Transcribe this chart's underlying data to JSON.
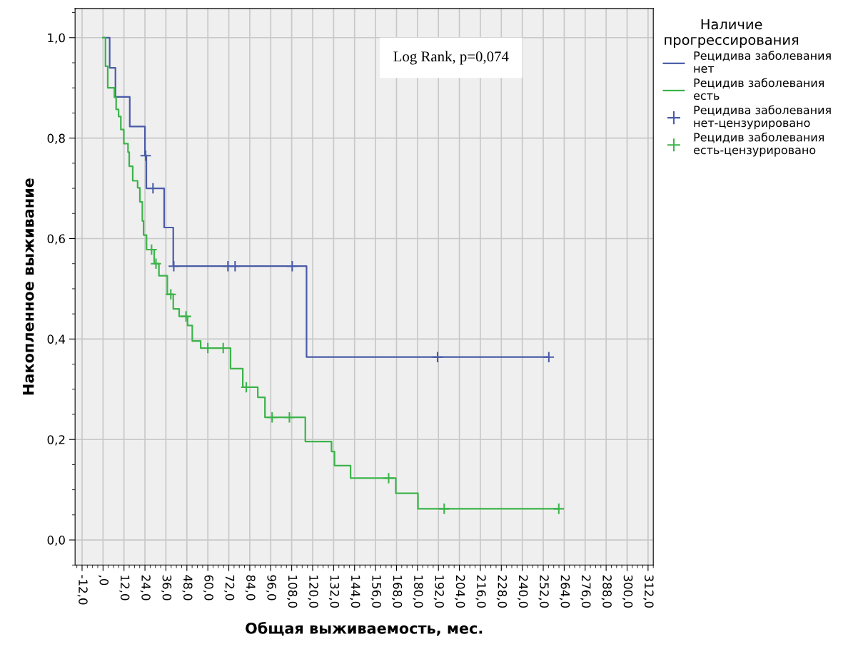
{
  "chart_data": {
    "type": "step",
    "xlabel": "Общая выживаемость, мес.",
    "ylabel": "Накопленное выживание",
    "legend_title": "Наличие прогрессирования",
    "annotations": [
      "Log Rank, p=0,074"
    ],
    "series": [
      {
        "name": "Рецидива заболевания нет",
        "color": "#4a5ca8",
        "x": [
          0,
          3.8,
          7.1,
          15.3,
          24.0,
          24.8,
          35.0,
          40.2,
          116.5,
          255.2
        ],
        "values": [
          1.0,
          0.94,
          0.882,
          0.823,
          0.765,
          0.7,
          0.622,
          0.545,
          0.364,
          0.364
        ]
      },
      {
        "name": "Рецидив заболевания есть",
        "color": "#3cb44a",
        "x": [
          0,
          1.4,
          2.7,
          6.5,
          7.5,
          8.9,
          10.2,
          11.9,
          14.3,
          15.0,
          17.0,
          19.8,
          21.1,
          22.5,
          23.2,
          24.9,
          29.3,
          32.0,
          36.8,
          40.2,
          43.6,
          48.4,
          51.1,
          55.9,
          73.0,
          80.0,
          88.6,
          92.7,
          115.8,
          130.8,
          132.5,
          141.7,
          167.6,
          180.3,
          260.9
        ],
        "values": [
          1.0,
          0.943,
          0.9,
          0.881,
          0.857,
          0.843,
          0.817,
          0.789,
          0.772,
          0.744,
          0.715,
          0.701,
          0.673,
          0.635,
          0.607,
          0.578,
          0.55,
          0.526,
          0.489,
          0.46,
          0.445,
          0.427,
          0.396,
          0.382,
          0.341,
          0.304,
          0.284,
          0.244,
          0.196,
          0.176,
          0.148,
          0.123,
          0.093,
          0.062,
          0.062
        ]
      },
      {
        "name": "Рецидива заболевания нет-цензурировано",
        "color": "#4a5ca8",
        "type": "scatter",
        "marker": "cross",
        "x": [
          24.4,
          28.6,
          40.5,
          71.5,
          75.6,
          108.3,
          191.5,
          255.2
        ],
        "values": [
          0.765,
          0.7,
          0.545,
          0.545,
          0.545,
          0.545,
          0.364,
          0.364
        ]
      },
      {
        "name": "Рецидив заболевания есть-цензурировано",
        "color": "#3cb44a",
        "type": "scatter",
        "marker": "cross",
        "x": [
          27.8,
          30.3,
          38.8,
          47.5,
          60.0,
          68.8,
          82.0,
          96.8,
          106.7,
          163.5,
          195.3,
          260.9
        ],
        "values": [
          0.578,
          0.55,
          0.489,
          0.445,
          0.382,
          0.382,
          0.304,
          0.244,
          0.244,
          0.123,
          0.062,
          0.062
        ]
      }
    ],
    "xlim": [
      -16,
      315
    ],
    "ylim": [
      -0.05,
      1.058
    ],
    "xticks": [
      {
        "value": -12,
        "label": "-12,0"
      },
      {
        "value": 0,
        "label": ",0"
      },
      {
        "value": 12,
        "label": "12,0"
      },
      {
        "value": 24,
        "label": "24,0"
      },
      {
        "value": 36,
        "label": "36,0"
      },
      {
        "value": 48,
        "label": "48,0"
      },
      {
        "value": 60,
        "label": "60,0"
      },
      {
        "value": 72,
        "label": "72,0"
      },
      {
        "value": 84,
        "label": "84,0"
      },
      {
        "value": 96,
        "label": "96,0"
      },
      {
        "value": 108,
        "label": "108,0"
      },
      {
        "value": 120,
        "label": "120,0"
      },
      {
        "value": 132,
        "label": "132,0"
      },
      {
        "value": 144,
        "label": "144,0"
      },
      {
        "value": 156,
        "label": "156,0"
      },
      {
        "value": 168,
        "label": "168,0"
      },
      {
        "value": 180,
        "label": "180,0"
      },
      {
        "value": 192,
        "label": "192,0"
      },
      {
        "value": 204,
        "label": "204,0"
      },
      {
        "value": 216,
        "label": "216,0"
      },
      {
        "value": 228,
        "label": "228,0"
      },
      {
        "value": 240,
        "label": "240,0"
      },
      {
        "value": 252,
        "label": "252,0"
      },
      {
        "value": 264,
        "label": "264,0"
      },
      {
        "value": 276,
        "label": "276,0"
      },
      {
        "value": 288,
        "label": "288,0"
      },
      {
        "value": 300,
        "label": "300,0"
      },
      {
        "value": 312,
        "label": "312,0"
      }
    ],
    "yticks": [
      {
        "value": 0,
        "label": "0,0"
      },
      {
        "value": 0.2,
        "label": "0,2"
      },
      {
        "value": 0.4,
        "label": "0,4"
      },
      {
        "value": 0.6,
        "label": "0,6"
      },
      {
        "value": 0.8,
        "label": "0,8"
      },
      {
        "value": 1.0,
        "label": "1,0"
      }
    ],
    "grid": true,
    "legend": "right"
  }
}
